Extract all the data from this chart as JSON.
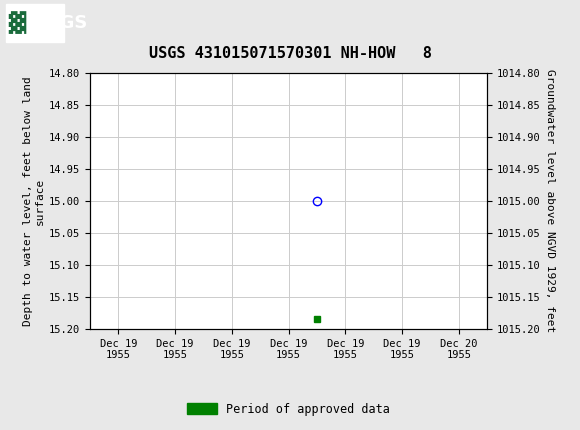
{
  "title": "USGS 431015071570301 NH-HOW   8",
  "title_fontsize": 11,
  "header_color": "#1a6b3c",
  "bg_color": "#e8e8e8",
  "plot_bg_color": "#ffffff",
  "grid_color": "#cccccc",
  "ylabel_left": "Depth to water level, feet below land\nsurface",
  "ylabel_right": "Groundwater level above NGVD 1929, feet",
  "ylim_left": [
    14.8,
    15.2
  ],
  "ylim_right": [
    1015.2,
    1014.8
  ],
  "y_ticks_left": [
    14.8,
    14.85,
    14.9,
    14.95,
    15.0,
    15.05,
    15.1,
    15.15,
    15.2
  ],
  "y_ticks_right": [
    1015.2,
    1015.15,
    1015.1,
    1015.05,
    1015.0,
    1014.95,
    1014.9,
    1014.85,
    1014.8
  ],
  "data_point_x": 3.5,
  "data_point_y": 15.0,
  "data_point_color": "blue",
  "data_point_marker": "o",
  "approved_x": 3.5,
  "approved_y": 15.185,
  "approved_color": "#008000",
  "approved_marker": "s",
  "approved_size": 4,
  "x_tick_labels": [
    "Dec 19\n1955",
    "Dec 19\n1955",
    "Dec 19\n1955",
    "Dec 19\n1955",
    "Dec 19\n1955",
    "Dec 19\n1955",
    "Dec 20\n1955"
  ],
  "x_positions": [
    0,
    1,
    2,
    3,
    4,
    5,
    6
  ],
  "xlim": [
    -0.5,
    6.5
  ],
  "legend_label": "Period of approved data",
  "font_family": "monospace",
  "tick_fontsize": 7.5,
  "label_fontsize": 8
}
